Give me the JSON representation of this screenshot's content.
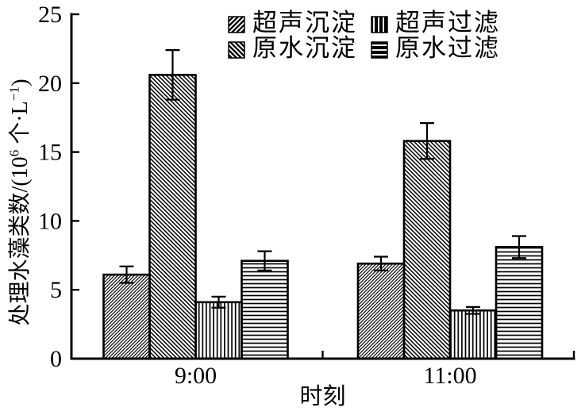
{
  "page": {
    "background": "#ffffff",
    "ink": "#000000"
  },
  "chart_data": {
    "type": "bar",
    "title": "",
    "xlabel": "时刻",
    "ylabel": "处理水藻类数/(10⁶ 个·L⁻¹)",
    "ylabel_parts": [
      "处理水藻类数/(10",
      "6",
      " 个·L",
      "−1",
      ")"
    ],
    "categories": [
      "9:00",
      "11:00"
    ],
    "ylim": [
      0,
      25
    ],
    "y_ticks": [
      0,
      5,
      10,
      15,
      20,
      25
    ],
    "grid": false,
    "bar_fill": "#ffffff",
    "ink": "#000000",
    "error_bars": true,
    "legend": {
      "position": "top-inside",
      "rows": 2,
      "columns": 2,
      "order": [
        "超声沉淀",
        "超声过滤",
        "原水沉淀",
        "原水过滤"
      ]
    },
    "series": [
      {
        "name": "超声沉淀",
        "pattern": "diagonal-up",
        "values": [
          6.1,
          6.9
        ],
        "errors": [
          0.6,
          0.5
        ]
      },
      {
        "name": "原水沉淀",
        "pattern": "diagonal-down",
        "values": [
          20.6,
          15.8
        ],
        "errors": [
          1.8,
          1.3
        ]
      },
      {
        "name": "超声过滤",
        "pattern": "vertical",
        "values": [
          4.1,
          3.5
        ],
        "errors": [
          0.4,
          0.25
        ]
      },
      {
        "name": "原水过滤",
        "pattern": "horizontal",
        "values": [
          7.1,
          8.1
        ],
        "errors": [
          0.7,
          0.8
        ]
      }
    ]
  }
}
